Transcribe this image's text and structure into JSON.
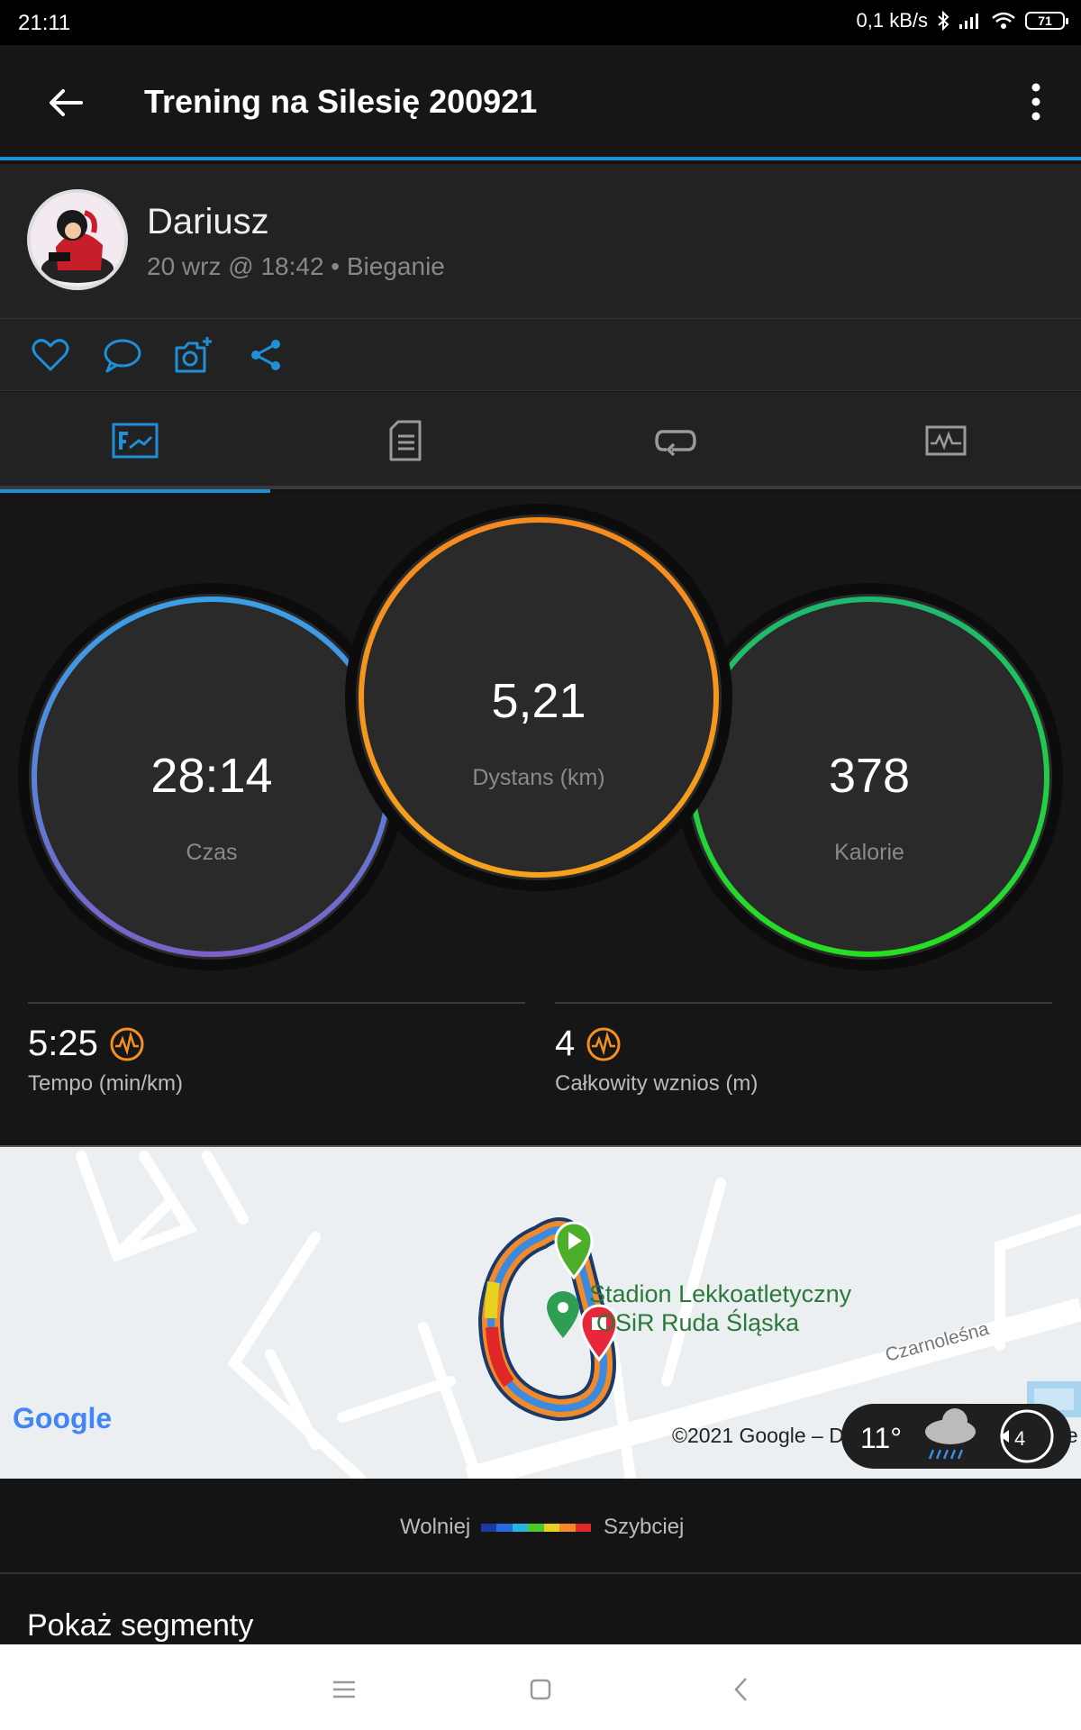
{
  "status": {
    "time": "21:11",
    "network_speed": "0,1 kB/s",
    "battery": "71"
  },
  "appbar": {
    "title": "Trening na Silesię 200921"
  },
  "profile": {
    "name": "Dariusz",
    "meta": "20 wrz @ 18:42 • Bieganie"
  },
  "stats": {
    "time": {
      "value": "28:14",
      "label": "Czas"
    },
    "distance": {
      "value": "5,21",
      "label": "Dystans (km)"
    },
    "calories": {
      "value": "378",
      "label": "Kalorie"
    },
    "pace": {
      "value": "5:25",
      "label": "Tempo (min/km)"
    },
    "elevation": {
      "value": "4",
      "label": "Całkowity wznios (m)"
    }
  },
  "map": {
    "place_line1": "Stadion Lekkoatletyczny",
    "place_line2": "OSiR Ruda Śląska",
    "street": "Czarnoleśna",
    "google": "Google",
    "copyright": "©2021 Google – Da",
    "copyright_tail": "gle",
    "weather_temp": "11°",
    "weather_badge": "4"
  },
  "legend": {
    "slower": "Wolniej",
    "faster": "Szybciej"
  },
  "segments": {
    "label": "Pokaż segmenty"
  },
  "colors": {
    "accent": "#1e90d8",
    "time_ring": "#4a9be0",
    "distance_ring": "#f5901e",
    "calories_ring": "#1ed24a",
    "pace_icon": "#f5901e"
  },
  "icons": [
    "back-arrow-icon",
    "more-vert-icon",
    "heart-icon",
    "comment-icon",
    "add-photo-icon",
    "share-icon",
    "overview-tab-icon",
    "details-tab-icon",
    "laps-tab-icon",
    "charts-tab-icon",
    "pulse-icon",
    "rain-cloud-icon",
    "clock-icon"
  ]
}
